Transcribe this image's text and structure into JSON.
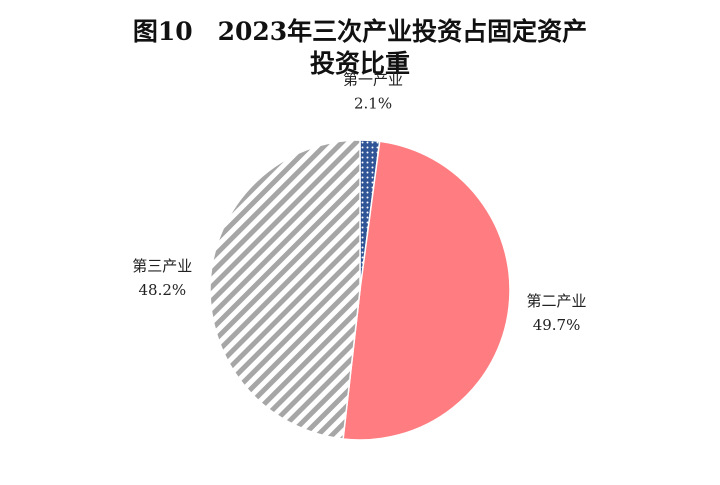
{
  "chart_data": {
    "type": "pie",
    "title": [
      "图10　2023年三次产业投资占固定资产",
      "投资比重"
    ],
    "categories": [
      "第一产业",
      "第二产业",
      "第三产业"
    ],
    "values": [
      2.1,
      49.7,
      48.2
    ],
    "value_labels": [
      "2.1%",
      "49.7%",
      "48.2%"
    ],
    "colors": [
      "#2f5597",
      "#ff7c80",
      "#a6a6a6"
    ],
    "patterns": [
      "dots",
      "solid",
      "stripes"
    ]
  }
}
